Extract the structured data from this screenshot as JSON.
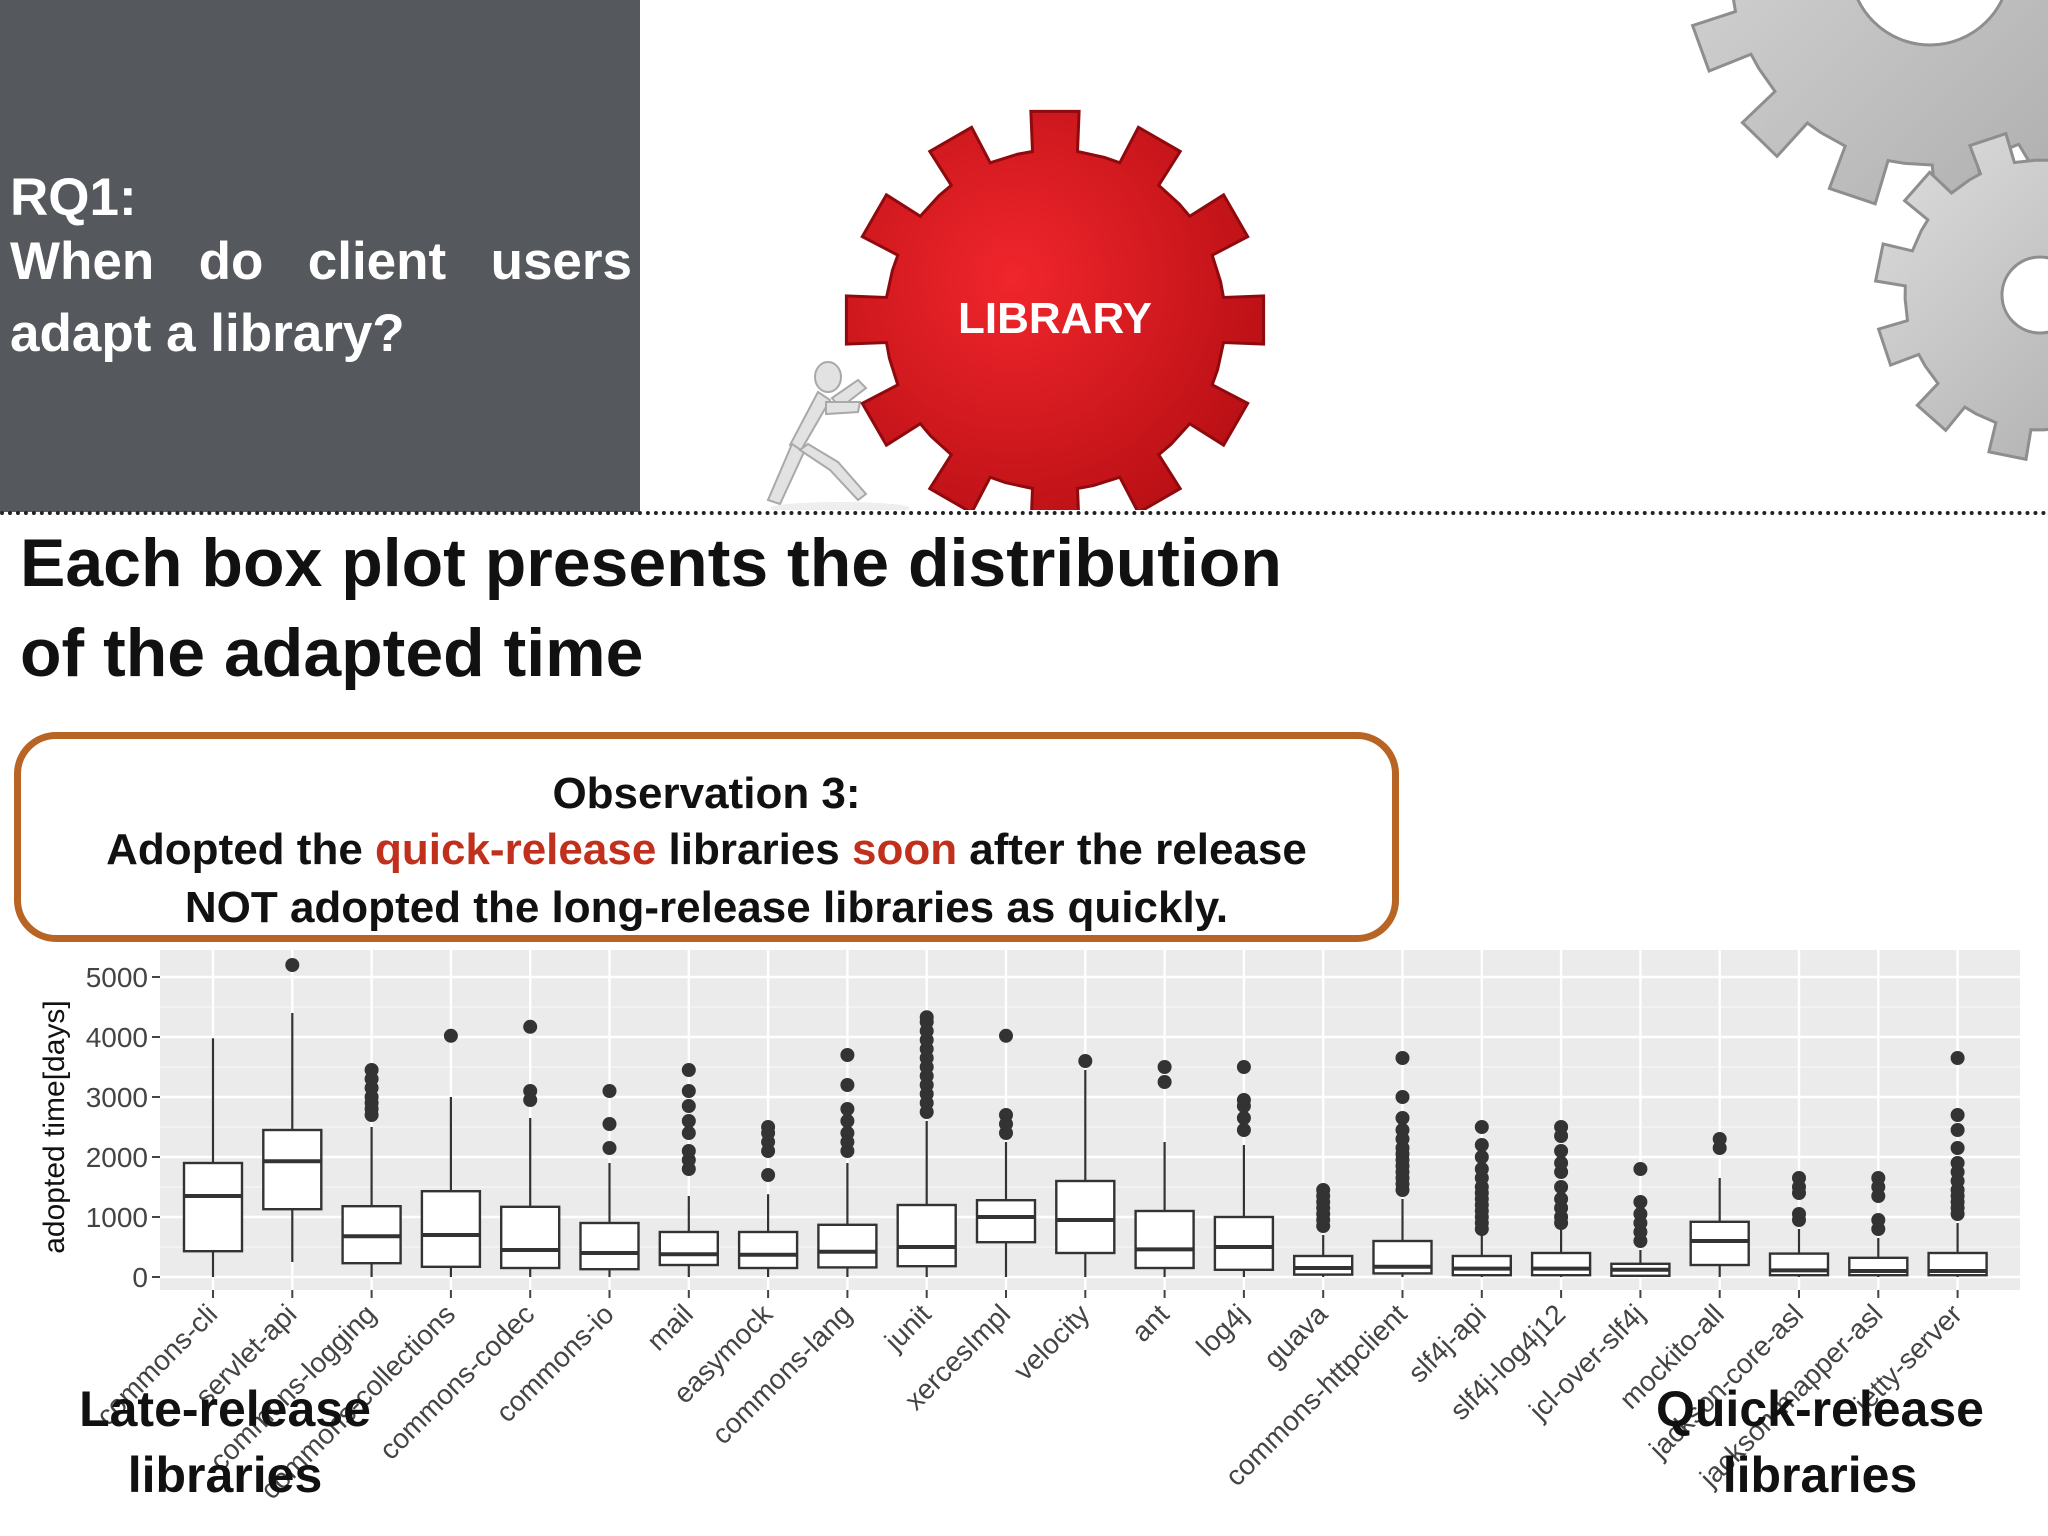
{
  "rq_panel": {
    "label": "RQ1:",
    "question": "When do client users adapt a library?"
  },
  "gear_label": "LIBRARY",
  "heading": {
    "line1": "Each box plot presents the distribution",
    "line2": "of the adapted time"
  },
  "observation": {
    "title": "Observation 3:",
    "line1_before": "Adopted the ",
    "line1_hl1": "quick-release",
    "line1_mid": " libraries ",
    "line1_hl2": "soon",
    "line1_after": " after the release",
    "line2": "NOT adopted the long-release libraries as quickly."
  },
  "labels": {
    "late_line1": "Late-release",
    "late_line2": "libraries",
    "quick_line1": "Quick-release",
    "quick_line2": "libraries"
  },
  "colors": {
    "panel": "#55595e",
    "gear_red": "#d0141a",
    "highlight": "#c0301c",
    "box_border": "#b86425",
    "plot_bg": "#ebebeb",
    "point": "#333333"
  },
  "chart_data": {
    "type": "box",
    "ylabel": "adopted time[days]",
    "xlabel": "",
    "ylim": [
      0,
      5200
    ],
    "yticks": [
      0,
      1000,
      2000,
      3000,
      4000,
      5000
    ],
    "grid": true,
    "categories": [
      "commons-cli",
      "servlet-api",
      "commons-logging",
      "commons-collections",
      "commons-codec",
      "commons-io",
      "mail",
      "easymock",
      "commons-lang",
      "junit",
      "xercesImpl",
      "velocity",
      "ant",
      "log4j",
      "guava",
      "commons-httpclient",
      "slf4j-api",
      "slf4j-log4j12",
      "jcl-over-slf4j",
      "mockito-all",
      "jackson-core-asl",
      "jackson-mapper-asl",
      "jetty-server"
    ],
    "series": [
      {
        "stats": [
          {
            "low": 0,
            "q1": 430,
            "median": 1350,
            "q3": 1900,
            "high": 3980,
            "outliers": []
          },
          {
            "low": 250,
            "q1": 1130,
            "median": 1930,
            "q3": 2450,
            "high": 4400,
            "outliers": [
              5200
            ]
          },
          {
            "low": 0,
            "q1": 230,
            "median": 680,
            "q3": 1180,
            "high": 2500,
            "outliers": [
              2700,
              2800,
              2900,
              3000,
              3150,
              3300,
              3450
            ]
          },
          {
            "low": 0,
            "q1": 170,
            "median": 700,
            "q3": 1430,
            "high": 3000,
            "outliers": [
              4020
            ]
          },
          {
            "low": 0,
            "q1": 150,
            "median": 450,
            "q3": 1170,
            "high": 2650,
            "outliers": [
              2950,
              3100,
              4170
            ]
          },
          {
            "low": 0,
            "q1": 130,
            "median": 400,
            "q3": 900,
            "high": 1900,
            "outliers": [
              2150,
              2550,
              3100
            ]
          },
          {
            "low": 0,
            "q1": 200,
            "median": 380,
            "q3": 750,
            "high": 1350,
            "outliers": [
              1800,
              1950,
              2100,
              2400,
              2600,
              2850,
              3100,
              3450
            ]
          },
          {
            "low": 0,
            "q1": 150,
            "median": 370,
            "q3": 750,
            "high": 1380,
            "outliers": [
              1700,
              2100,
              2250,
              2400,
              2500
            ]
          },
          {
            "low": 0,
            "q1": 160,
            "median": 420,
            "q3": 870,
            "high": 1900,
            "outliers": [
              2100,
              2250,
              2400,
              2600,
              2800,
              3200,
              3700
            ]
          },
          {
            "low": 0,
            "q1": 180,
            "median": 500,
            "q3": 1200,
            "high": 2600,
            "outliers": [
              2750,
              2900,
              3050,
              3200,
              3350,
              3500,
              3650,
              3800,
              3950,
              4100,
              4250,
              4330
            ]
          },
          {
            "low": 0,
            "q1": 580,
            "median": 1000,
            "q3": 1280,
            "high": 2250,
            "outliers": [
              2400,
              2550,
              2700,
              4020
            ]
          },
          {
            "low": 0,
            "q1": 400,
            "median": 950,
            "q3": 1600,
            "high": 3450,
            "outliers": [
              3600
            ]
          },
          {
            "low": 0,
            "q1": 150,
            "median": 460,
            "q3": 1100,
            "high": 2250,
            "outliers": [
              3250,
              3500
            ]
          },
          {
            "low": 0,
            "q1": 120,
            "median": 500,
            "q3": 1000,
            "high": 2200,
            "outliers": [
              2450,
              2650,
              2850,
              2950,
              3500
            ]
          },
          {
            "low": 0,
            "q1": 40,
            "median": 150,
            "q3": 350,
            "high": 700,
            "outliers": [
              850,
              950,
              1050,
              1150,
              1250,
              1350,
              1450
            ]
          },
          {
            "low": 0,
            "q1": 60,
            "median": 170,
            "q3": 600,
            "high": 1300,
            "outliers": [
              1450,
              1550,
              1650,
              1750,
              1850,
              1950,
              2050,
              2150,
              2300,
              2450,
              2650,
              3000,
              3650
            ]
          },
          {
            "low": 0,
            "q1": 30,
            "median": 140,
            "q3": 350,
            "high": 700,
            "outliers": [
              800,
              900,
              1000,
              1100,
              1200,
              1300,
              1400,
              1500,
              1650,
              1800,
              2000,
              2200,
              2500
            ]
          },
          {
            "low": 0,
            "q1": 30,
            "median": 140,
            "q3": 400,
            "high": 800,
            "outliers": [
              900,
              1000,
              1150,
              1300,
              1500,
              1750,
              1900,
              2100,
              2350,
              2500
            ]
          },
          {
            "low": 0,
            "q1": 20,
            "median": 120,
            "q3": 220,
            "high": 450,
            "outliers": [
              600,
              750,
              900,
              1050,
              1250,
              1800
            ]
          },
          {
            "low": 0,
            "q1": 200,
            "median": 600,
            "q3": 920,
            "high": 1650,
            "outliers": [
              2150,
              2300
            ]
          },
          {
            "low": 0,
            "q1": 30,
            "median": 110,
            "q3": 390,
            "high": 800,
            "outliers": [
              950,
              1050,
              1400,
              1500,
              1650
            ]
          },
          {
            "low": 0,
            "q1": 30,
            "median": 100,
            "q3": 320,
            "high": 650,
            "outliers": [
              800,
              950,
              1350,
              1500,
              1650
            ]
          },
          {
            "low": 0,
            "q1": 30,
            "median": 100,
            "q3": 400,
            "high": 900,
            "outliers": [
              1050,
              1150,
              1250,
              1350,
              1450,
              1600,
              1750,
              1900,
              2150,
              2450,
              2700,
              3650
            ]
          }
        ]
      }
    ]
  }
}
